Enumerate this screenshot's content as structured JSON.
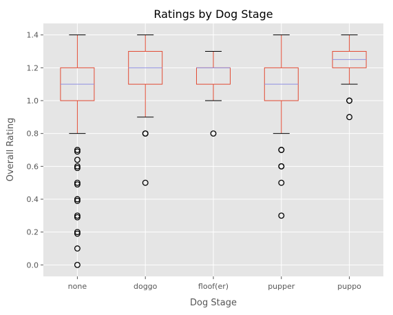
{
  "chart_data": {
    "type": "boxplot",
    "title": "Ratings by Dog Stage",
    "xlabel": "Dog Stage",
    "ylabel": "Overall Rating",
    "ylim": [
      -0.07,
      1.47
    ],
    "yticks": [
      0.0,
      0.2,
      0.4,
      0.6,
      0.8,
      1.0,
      1.2,
      1.4
    ],
    "ytick_labels": [
      "0.0",
      "0.2",
      "0.4",
      "0.6",
      "0.8",
      "1.0",
      "1.2",
      "1.4"
    ],
    "grid": true,
    "categories": [
      "none",
      "doggo",
      "floof(er)",
      "pupper",
      "puppo"
    ],
    "boxes": [
      {
        "name": "none",
        "whisker_low": 0.8,
        "q1": 1.0,
        "median": 1.1,
        "q3": 1.2,
        "whisker_high": 1.4,
        "outliers": [
          0.7,
          0.69,
          0.64,
          0.6,
          0.59,
          0.5,
          0.49,
          0.4,
          0.39,
          0.3,
          0.29,
          0.2,
          0.19,
          0.1,
          0.0
        ]
      },
      {
        "name": "doggo",
        "whisker_low": 0.9,
        "q1": 1.1,
        "median": 1.2,
        "q3": 1.3,
        "whisker_high": 1.4,
        "outliers": [
          0.8,
          0.8,
          0.5
        ]
      },
      {
        "name": "floof(er)",
        "whisker_low": 1.0,
        "q1": 1.1,
        "median": 1.2,
        "q3": 1.2,
        "whisker_high": 1.3,
        "outliers": [
          0.8
        ]
      },
      {
        "name": "pupper",
        "whisker_low": 0.8,
        "q1": 1.0,
        "median": 1.1,
        "q3": 1.2,
        "whisker_high": 1.4,
        "outliers": [
          0.7,
          0.7,
          0.6,
          0.6,
          0.5,
          0.3
        ]
      },
      {
        "name": "puppo",
        "whisker_low": 1.1,
        "q1": 1.2,
        "median": 1.25,
        "q3": 1.3,
        "whisker_high": 1.4,
        "outliers": [
          1.0,
          1.0,
          0.9
        ]
      }
    ],
    "colors": {
      "background": "#e5e5e5",
      "grid": "#ffffff",
      "box": "#e24a33",
      "median": "#8f8fe0",
      "whisker": "#000000",
      "outlier": "#000000"
    }
  }
}
